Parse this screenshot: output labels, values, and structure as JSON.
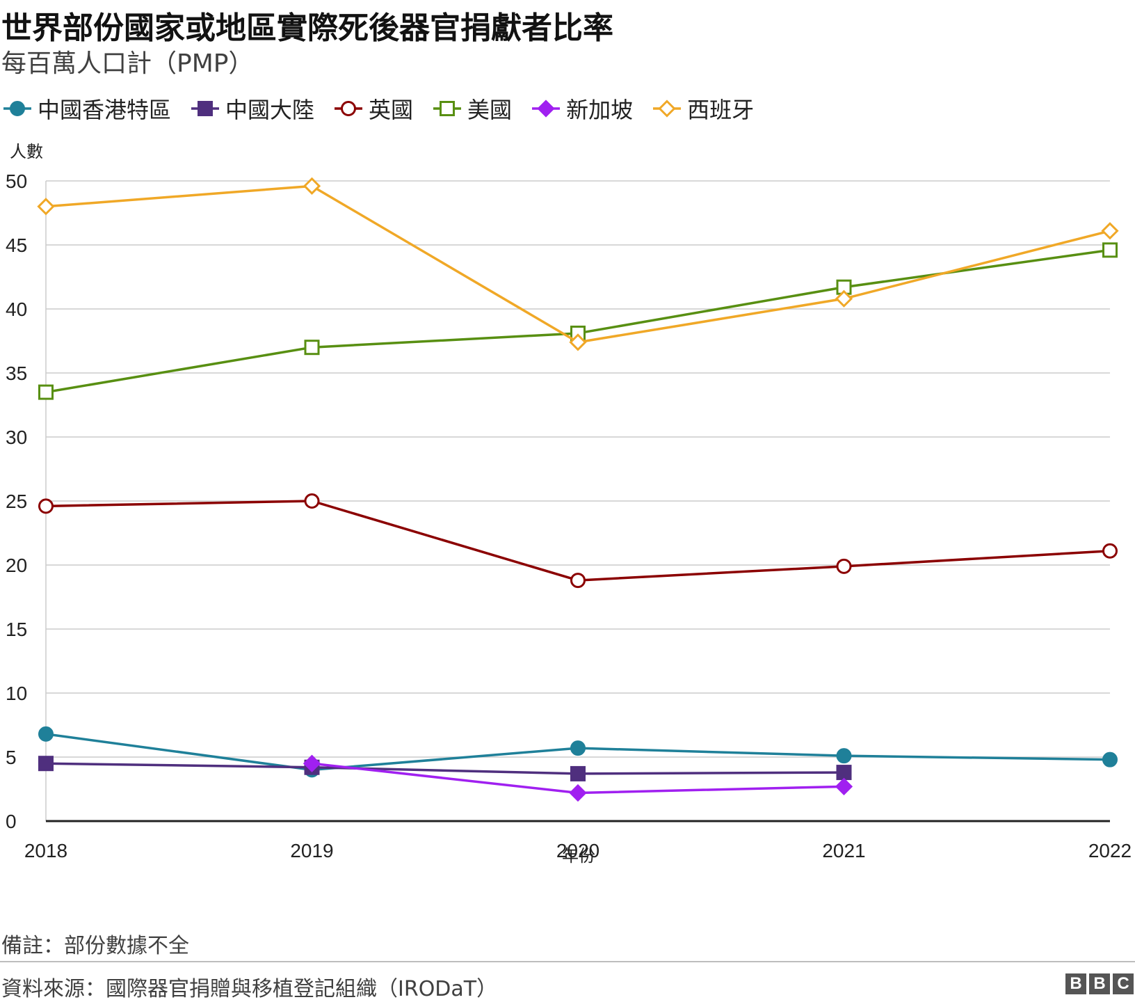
{
  "title": "世界部份國家或地區實際死後器官捐獻者比率",
  "subtitle": "每百萬人口計（PMP）",
  "note": "備註：部份數據不全",
  "source": "資料來源：國際器官捐贈與移植登記組織（IRODaT）",
  "logo": [
    "B",
    "B",
    "C"
  ],
  "chart_data": {
    "type": "line",
    "title": "世界部份國家或地區實際死後器官捐獻者比率",
    "ylabel": "人數",
    "xlabel": "年份",
    "categories": [
      "2018",
      "2019",
      "2020",
      "2021",
      "2022"
    ],
    "ylim": [
      0,
      50
    ],
    "yticks": [
      0,
      5,
      10,
      15,
      20,
      25,
      30,
      35,
      40,
      45,
      50
    ],
    "grid": true,
    "legend_position": "top-left",
    "series": [
      {
        "name": "中國香港特區",
        "color": "#1f8099",
        "marker": "circle",
        "filled": true,
        "values": [
          6.8,
          4.0,
          5.7,
          5.1,
          4.8
        ]
      },
      {
        "name": "中國大陸",
        "color": "#4f2f7e",
        "marker": "square",
        "filled": true,
        "values": [
          4.5,
          4.2,
          3.7,
          3.8,
          null
        ]
      },
      {
        "name": "英國",
        "color": "#8b0000",
        "marker": "circle",
        "filled": false,
        "values": [
          24.6,
          25.0,
          18.8,
          19.9,
          21.1
        ]
      },
      {
        "name": "美國",
        "color": "#588f12",
        "marker": "square",
        "filled": false,
        "values": [
          33.5,
          37.0,
          38.1,
          41.7,
          44.6
        ]
      },
      {
        "name": "新加坡",
        "color": "#a020f0",
        "marker": "diamond",
        "filled": true,
        "values": [
          null,
          4.5,
          2.2,
          2.7,
          null
        ]
      },
      {
        "name": "西班牙",
        "color": "#f0a827",
        "marker": "diamond",
        "filled": false,
        "values": [
          48.0,
          49.6,
          37.4,
          40.8,
          46.1
        ]
      }
    ]
  }
}
